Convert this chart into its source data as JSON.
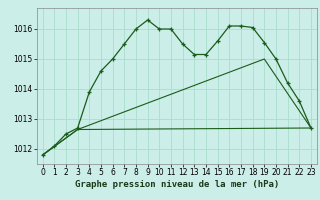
{
  "title": "Graphe pression niveau de la mer (hPa)",
  "bg_color": "#cceee8",
  "grid_color": "#aaddcc",
  "line_color": "#1a5c1a",
  "x_ticks": [
    0,
    1,
    2,
    3,
    4,
    5,
    6,
    7,
    8,
    9,
    10,
    11,
    12,
    13,
    14,
    15,
    16,
    17,
    18,
    19,
    20,
    21,
    22,
    23
  ],
  "y_ticks": [
    1012,
    1013,
    1014,
    1015,
    1016
  ],
  "ylim": [
    1011.5,
    1016.7
  ],
  "xlim": [
    -0.5,
    23.5
  ],
  "line1_x": [
    0,
    1,
    2,
    3,
    4,
    5,
    6,
    7,
    8,
    9,
    10,
    11,
    12,
    13,
    14,
    15,
    16,
    17,
    18,
    19,
    20,
    21,
    22,
    23
  ],
  "line1_y": [
    1011.8,
    1012.1,
    1012.5,
    1012.7,
    1013.9,
    1014.6,
    1015.0,
    1015.5,
    1016.0,
    1016.3,
    1016.0,
    1016.0,
    1015.5,
    1015.15,
    1015.15,
    1015.6,
    1016.1,
    1016.1,
    1016.05,
    1015.55,
    1015.0,
    1014.2,
    1013.6,
    1012.7
  ],
  "line2_x": [
    0,
    3,
    23
  ],
  "line2_y": [
    1011.8,
    1012.65,
    1012.7
  ],
  "line3_x": [
    0,
    3,
    19,
    23
  ],
  "line3_y": [
    1011.8,
    1012.65,
    1015.0,
    1012.7
  ],
  "tick_fontsize": 5.5,
  "xlabel_fontsize": 6.5
}
